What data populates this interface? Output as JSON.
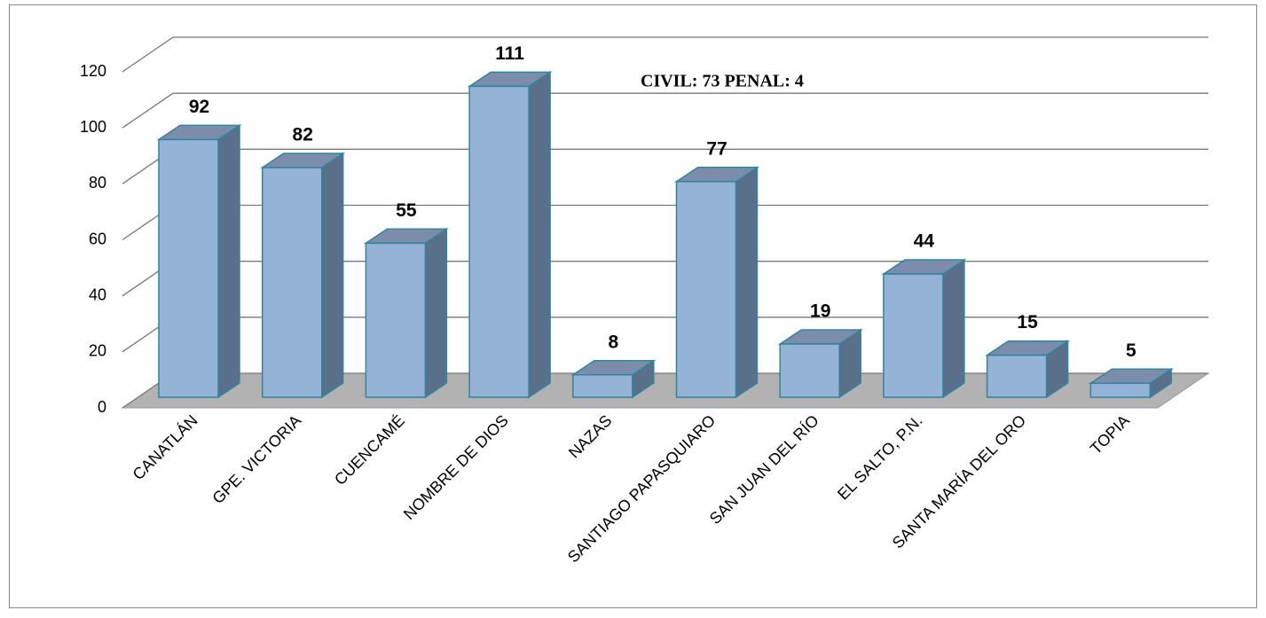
{
  "chart_data": {
    "type": "bar3d",
    "categories": [
      "CANATLÁN",
      "GPE. VICTORIA",
      "CUENCAMÉ",
      "NOMBRE DE DIOS",
      "NAZAS",
      "SANTIAGO PAPASQUIARO",
      "SAN JUAN DEL RÍO",
      "EL SALTO, P.N.",
      "SANTA MARÍA DEL ORO",
      "TOPIA"
    ],
    "values": [
      92,
      82,
      55,
      111,
      8,
      77,
      19,
      44,
      15,
      5
    ],
    "color": "#95b3d7",
    "ylim": [
      0,
      120
    ],
    "yticks": [
      0,
      20,
      40,
      60,
      80,
      100,
      120
    ],
    "grid": true,
    "annotation": "CIVIL: 73 PENAL: 4"
  }
}
